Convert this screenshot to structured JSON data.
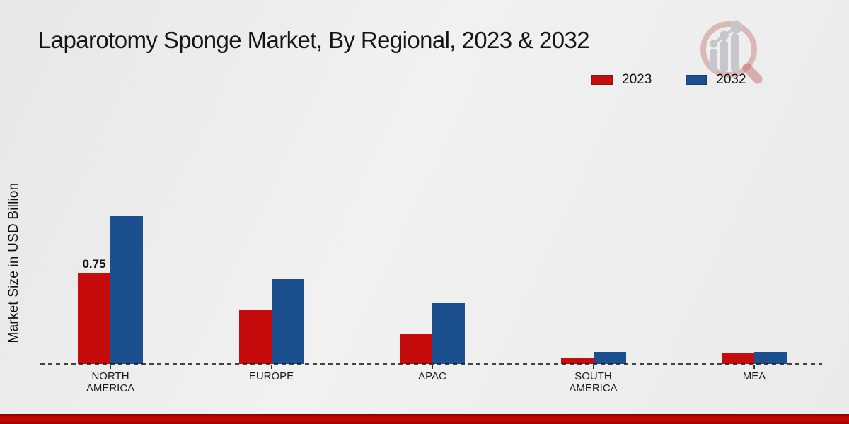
{
  "title": "Laparotomy Sponge Market, By Regional, 2023 & 2032",
  "legend": {
    "items": [
      {
        "label": "2023",
        "color": "#c50b0b"
      },
      {
        "label": "2032",
        "color": "#1b4f8e"
      }
    ]
  },
  "chart_data": {
    "type": "bar",
    "title": "Laparotomy Sponge Market, By Regional, 2023 & 2032",
    "ylabel": "Market Size in USD Billion",
    "xlabel": "",
    "categories": [
      "NORTH AMERICA",
      "EUROPE",
      "APAC",
      "SOUTH AMERICA",
      "MEA"
    ],
    "series": [
      {
        "name": "2023",
        "color": "#c50b0b",
        "values": [
          0.75,
          0.45,
          0.25,
          0.05,
          0.09
        ],
        "point_labels": [
          "0.75",
          "",
          "",
          "",
          ""
        ]
      },
      {
        "name": "2032",
        "color": "#1b4f8e",
        "values": [
          1.22,
          0.7,
          0.5,
          0.1,
          0.1
        ],
        "point_labels": [
          "",
          "",
          "",
          "",
          ""
        ]
      }
    ],
    "ylim": [
      0,
      1.35
    ],
    "grid": false,
    "legend_position": "top-right",
    "axis_style": "dashed-baseline"
  },
  "watermark": {
    "icon": "magnifier-bar-chart-logo"
  },
  "colors": {
    "background": "#ececec",
    "footer": "#c00404",
    "baseline": "#2b2b2b",
    "text": "#1a1a1a"
  }
}
